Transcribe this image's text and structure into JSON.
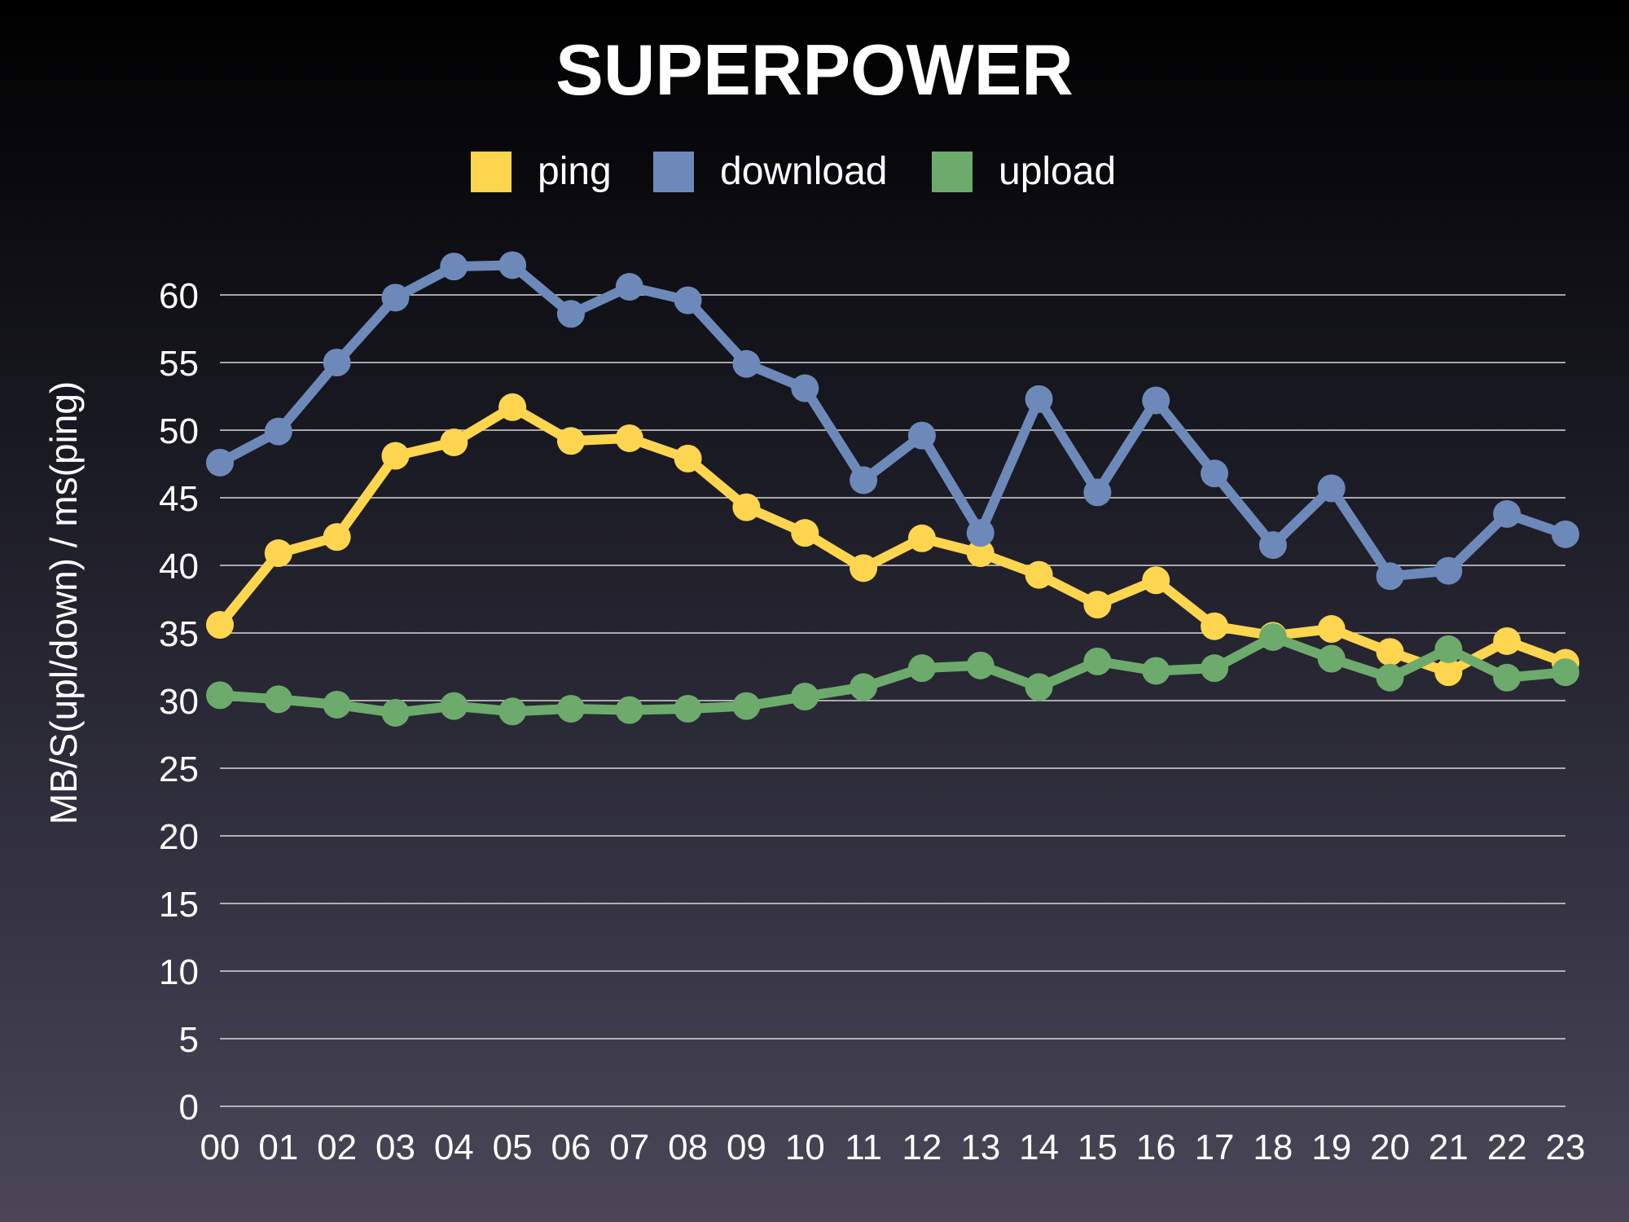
{
  "chart_data": {
    "type": "line",
    "title": "SUPERPOWER",
    "ylabel": "MB/S(upl/down) / ms(ping)",
    "xlabel": "",
    "ylim": [
      0,
      60
    ],
    "yticks": [
      0,
      5,
      10,
      15,
      20,
      25,
      30,
      35,
      40,
      45,
      50,
      55,
      60
    ],
    "grid": true,
    "legend_position": "top",
    "categories": [
      "00",
      "01",
      "02",
      "03",
      "04",
      "05",
      "06",
      "07",
      "08",
      "09",
      "10",
      "11",
      "12",
      "13",
      "14",
      "15",
      "16",
      "17",
      "18",
      "19",
      "20",
      "21",
      "22",
      "23"
    ],
    "series": [
      {
        "name": "ping",
        "color": "#fdd54f",
        "values": [
          35.6,
          40.9,
          42.1,
          48.1,
          49.1,
          51.7,
          49.2,
          49.4,
          47.9,
          44.3,
          42.4,
          39.8,
          42.0,
          40.9,
          39.3,
          37.1,
          38.9,
          35.5,
          34.8,
          35.3,
          33.6,
          32.1,
          34.4,
          32.8
        ]
      },
      {
        "name": "download",
        "color": "#6d89b9",
        "values": [
          47.6,
          49.9,
          55.0,
          59.8,
          62.1,
          62.2,
          58.6,
          60.6,
          59.6,
          54.9,
          53.1,
          46.3,
          49.6,
          42.4,
          52.3,
          45.4,
          52.2,
          46.8,
          41.5,
          45.7,
          39.2,
          39.6,
          43.8,
          42.3
        ]
      },
      {
        "name": "upload",
        "color": "#6dab6c",
        "values": [
          30.4,
          30.1,
          29.7,
          29.1,
          29.6,
          29.2,
          29.4,
          29.3,
          29.4,
          29.6,
          30.3,
          31.0,
          32.4,
          32.6,
          31.0,
          32.9,
          32.2,
          32.4,
          34.7,
          33.1,
          31.7,
          33.8,
          31.7,
          32.1
        ]
      }
    ]
  }
}
